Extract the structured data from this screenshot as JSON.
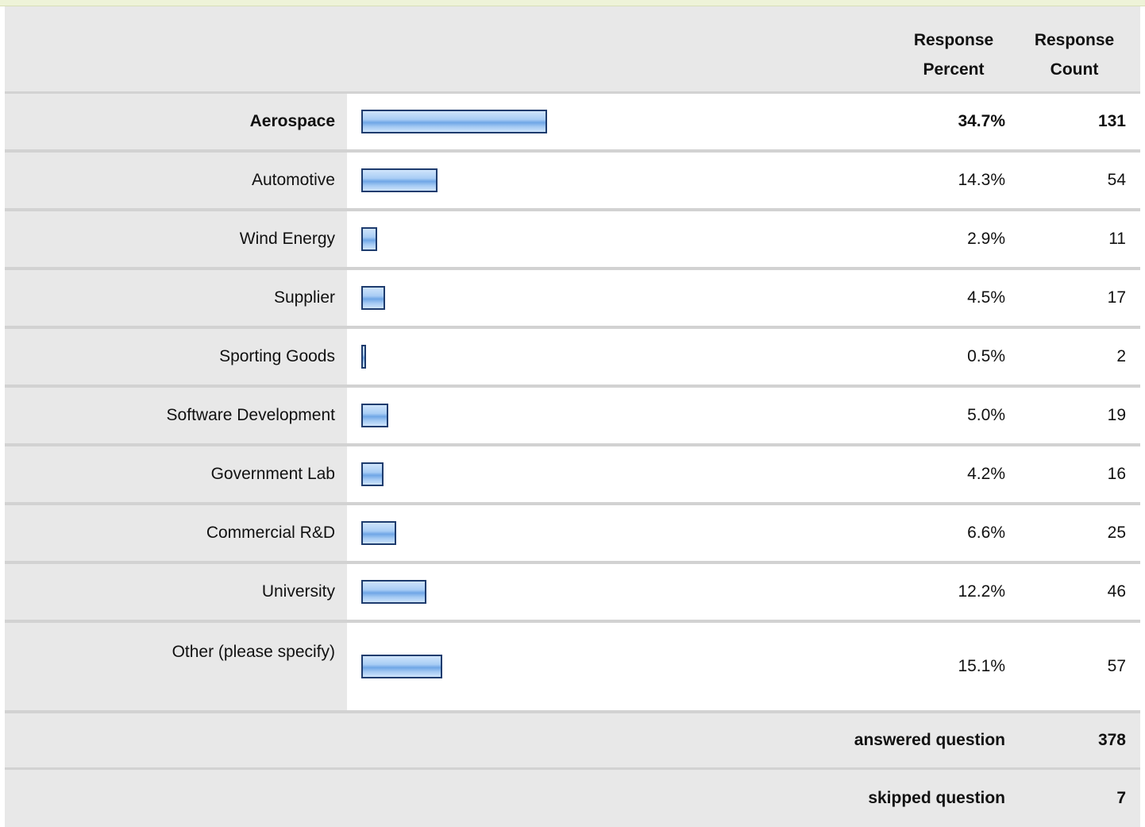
{
  "table": {
    "header": {
      "percent": "Response Percent",
      "count": "Response Count"
    },
    "rows": [
      {
        "label": "Aerospace",
        "percent": 34.7,
        "percent_label": "34.7%",
        "count": 131
      },
      {
        "label": "Automotive",
        "percent": 14.3,
        "percent_label": "14.3%",
        "count": 54
      },
      {
        "label": "Wind Energy",
        "percent": 2.9,
        "percent_label": "2.9%",
        "count": 11
      },
      {
        "label": "Supplier",
        "percent": 4.5,
        "percent_label": "4.5%",
        "count": 17
      },
      {
        "label": "Sporting Goods",
        "percent": 0.5,
        "percent_label": "0.5%",
        "count": 2
      },
      {
        "label": "Software Development",
        "percent": 5.0,
        "percent_label": "5.0%",
        "count": 19
      },
      {
        "label": "Government Lab",
        "percent": 4.2,
        "percent_label": "4.2%",
        "count": 16
      },
      {
        "label": "Commercial R&D",
        "percent": 6.6,
        "percent_label": "6.6%",
        "count": 25
      },
      {
        "label": "University",
        "percent": 12.2,
        "percent_label": "12.2%",
        "count": 46
      },
      {
        "label": "Other (please specify)",
        "percent": 15.1,
        "percent_label": "15.1%",
        "count": 57
      }
    ],
    "footer": [
      {
        "label": "answered question",
        "count": 378
      },
      {
        "label": "skipped question",
        "count": 7
      }
    ]
  }
}
